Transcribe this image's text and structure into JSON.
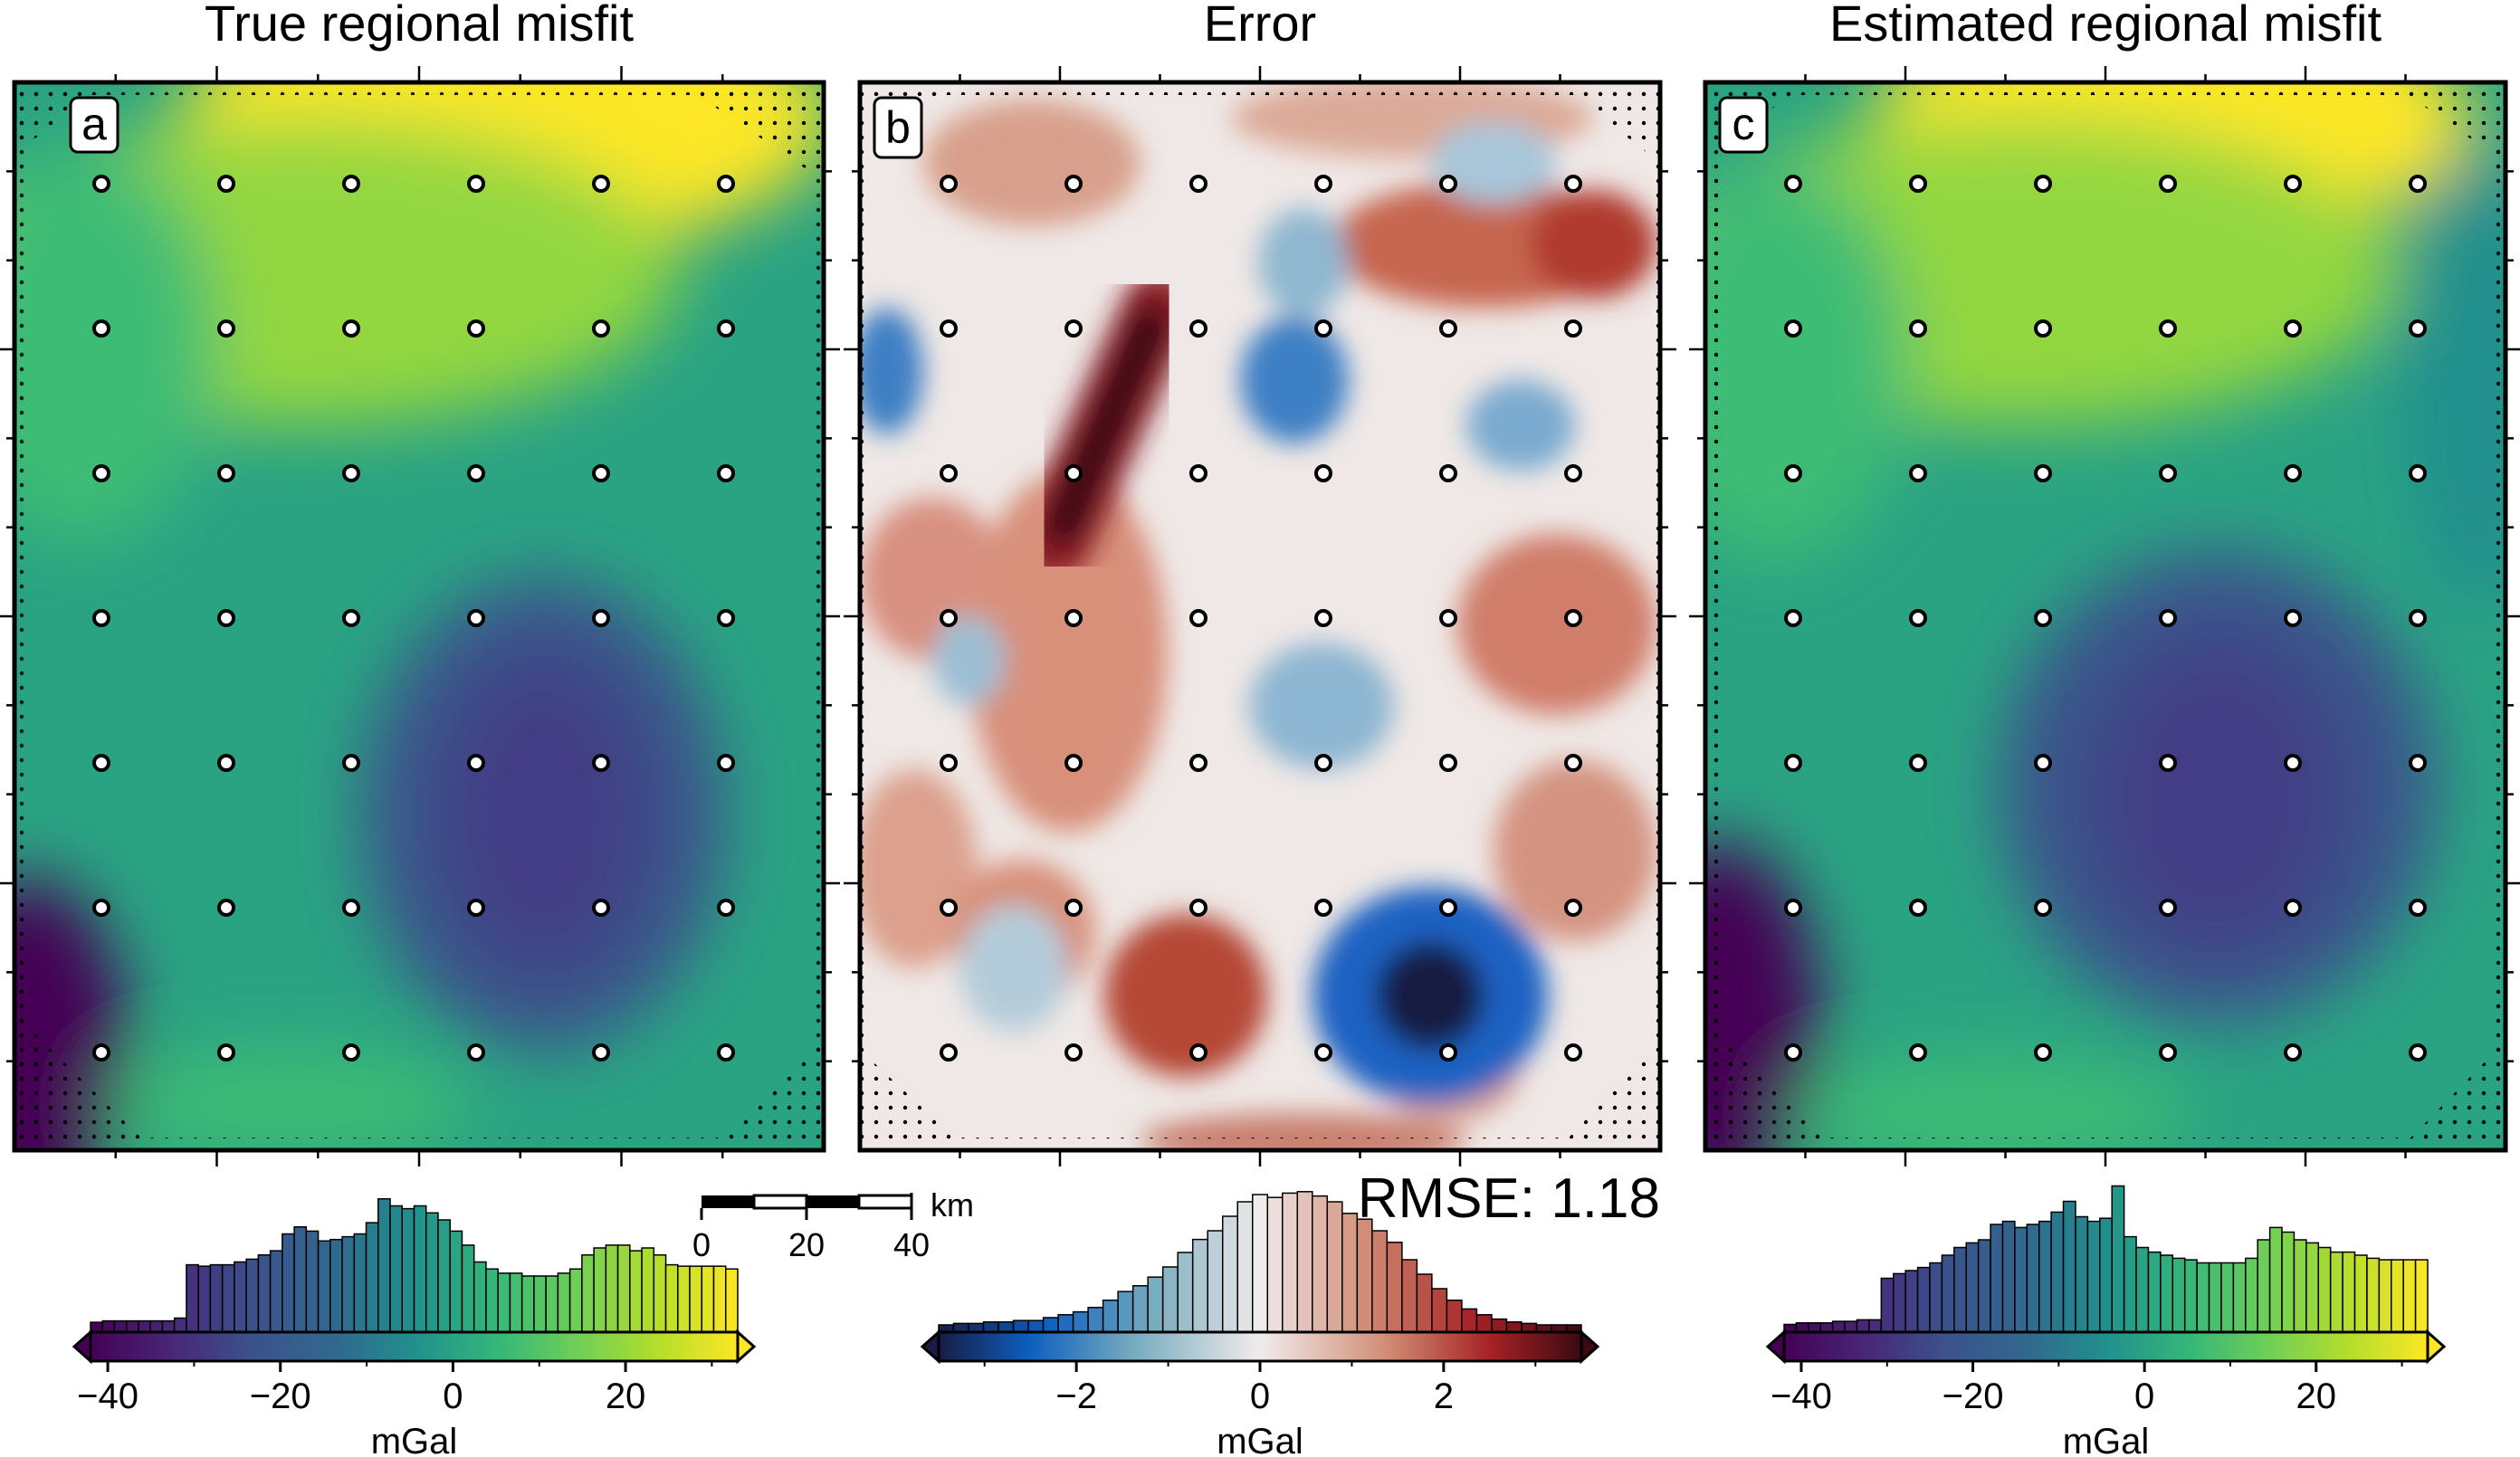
{
  "figure": {
    "rmse_label": "RMSE: 1.18",
    "scalebar": {
      "ticks": [
        "0",
        "20",
        "40"
      ],
      "unit": "km"
    }
  },
  "chart_data": [
    {
      "type": "heatmap",
      "panel_label": "a",
      "title": "True regional misfit",
      "colormap": "viridis",
      "colorbar": {
        "range": [
          -42,
          33
        ],
        "ticks": [
          -40,
          -20,
          0,
          20
        ],
        "label": "mGal",
        "triangle_left": true,
        "triangle_right": true
      },
      "histogram": [
        0.07,
        0.08,
        0.08,
        0.08,
        0.08,
        0.08,
        0.08,
        0.1,
        0.48,
        0.47,
        0.48,
        0.48,
        0.5,
        0.52,
        0.55,
        0.58,
        0.7,
        0.75,
        0.72,
        0.65,
        0.66,
        0.68,
        0.7,
        0.78,
        0.95,
        0.9,
        0.88,
        0.9,
        0.85,
        0.8,
        0.72,
        0.62,
        0.5,
        0.45,
        0.42,
        0.42,
        0.4,
        0.4,
        0.4,
        0.42,
        0.45,
        0.55,
        0.6,
        0.62,
        0.62,
        0.58,
        0.6,
        0.55,
        0.48,
        0.47,
        0.47,
        0.47,
        0.47,
        0.45
      ]
    },
    {
      "type": "heatmap",
      "panel_label": "b",
      "title": "Error",
      "colormap": "balance",
      "colorbar": {
        "range": [
          -3.5,
          3.5
        ],
        "ticks": [
          -2,
          0,
          2
        ],
        "label": "mGal",
        "triangle_left": true,
        "triangle_right": true
      },
      "histogram": [
        0.05,
        0.06,
        0.06,
        0.07,
        0.07,
        0.08,
        0.08,
        0.1,
        0.12,
        0.14,
        0.17,
        0.22,
        0.28,
        0.32,
        0.38,
        0.45,
        0.55,
        0.64,
        0.7,
        0.8,
        0.9,
        0.95,
        0.93,
        0.96,
        0.97,
        0.94,
        0.9,
        0.82,
        0.78,
        0.7,
        0.62,
        0.5,
        0.4,
        0.3,
        0.22,
        0.16,
        0.12,
        0.09,
        0.07,
        0.06,
        0.05,
        0.05,
        0.05
      ]
    },
    {
      "type": "heatmap",
      "panel_label": "c",
      "title": "Estimated regional misfit",
      "colormap": "viridis",
      "colorbar": {
        "range": [
          -42,
          33
        ],
        "ticks": [
          -40,
          -20,
          0,
          20
        ],
        "label": "mGal",
        "triangle_left": true,
        "triangle_right": true
      },
      "histogram": [
        0.05,
        0.06,
        0.06,
        0.06,
        0.07,
        0.07,
        0.08,
        0.08,
        0.35,
        0.38,
        0.4,
        0.42,
        0.45,
        0.5,
        0.55,
        0.58,
        0.6,
        0.7,
        0.72,
        0.68,
        0.7,
        0.72,
        0.78,
        0.85,
        0.75,
        0.72,
        0.74,
        0.95,
        0.62,
        0.55,
        0.52,
        0.5,
        0.48,
        0.47,
        0.45,
        0.45,
        0.45,
        0.45,
        0.48,
        0.6,
        0.68,
        0.65,
        0.6,
        0.58,
        0.55,
        0.52,
        0.52,
        0.5,
        0.48,
        0.47,
        0.47,
        0.47,
        0.47
      ]
    }
  ]
}
